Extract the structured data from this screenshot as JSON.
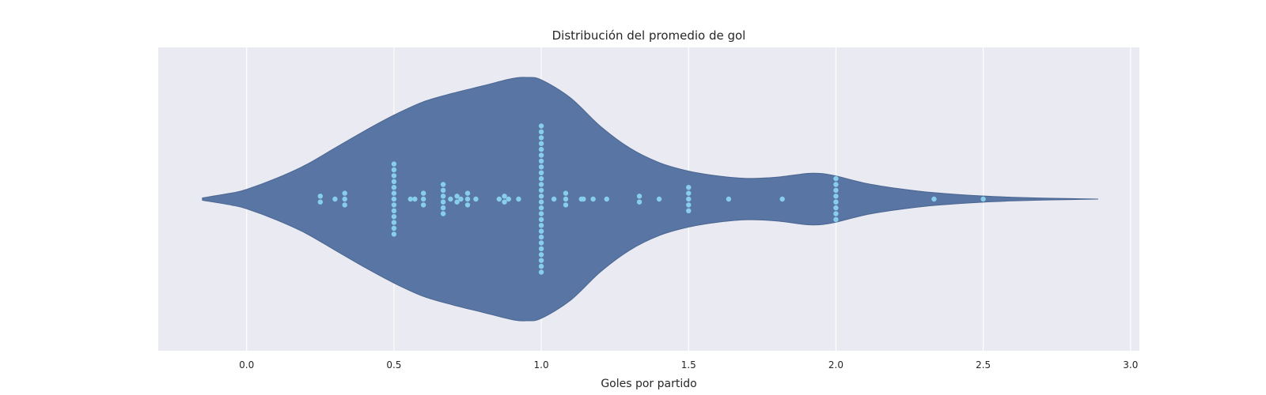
{
  "chart_data": {
    "type": "violin",
    "title": "Distribución del promedio de gol",
    "xlabel": "Goles por partido",
    "ylabel": "",
    "xlim": [
      -0.3,
      3.03
    ],
    "x_ticks": [
      "0.0",
      "0.5",
      "1.0",
      "1.5",
      "2.0",
      "2.5",
      "3.0"
    ],
    "grid": true,
    "colors": {
      "background": "#eaeaf2",
      "grid": "#ffffff",
      "violin": "#5975a4",
      "points": "#87ceeb"
    },
    "violin_profile": {
      "x": [
        -0.15,
        -0.05,
        0.0,
        0.1,
        0.2,
        0.3,
        0.4,
        0.5,
        0.6,
        0.7,
        0.8,
        0.9,
        0.95,
        1.0,
        1.1,
        1.2,
        1.3,
        1.4,
        1.5,
        1.6,
        1.7,
        1.8,
        1.9,
        1.95,
        2.0,
        2.1,
        2.2,
        2.3,
        2.4,
        2.5,
        2.6,
        2.7,
        2.8,
        2.89
      ],
      "density": [
        0.01,
        0.05,
        0.08,
        0.17,
        0.28,
        0.42,
        0.56,
        0.69,
        0.8,
        0.87,
        0.93,
        0.99,
        1.0,
        0.98,
        0.83,
        0.6,
        0.42,
        0.3,
        0.23,
        0.19,
        0.17,
        0.18,
        0.21,
        0.21,
        0.19,
        0.13,
        0.09,
        0.06,
        0.04,
        0.025,
        0.015,
        0.008,
        0.004,
        0.0
      ]
    },
    "points": [
      {
        "value": 0.25,
        "count": 2
      },
      {
        "value": 0.3,
        "count": 1
      },
      {
        "value": 0.333,
        "count": 3
      },
      {
        "value": 0.5,
        "count": 13
      },
      {
        "value": 0.556,
        "count": 1
      },
      {
        "value": 0.571,
        "count": 1
      },
      {
        "value": 0.6,
        "count": 3
      },
      {
        "value": 0.667,
        "count": 6
      },
      {
        "value": 0.692,
        "count": 1
      },
      {
        "value": 0.714,
        "count": 2
      },
      {
        "value": 0.727,
        "count": 1
      },
      {
        "value": 0.75,
        "count": 3
      },
      {
        "value": 0.778,
        "count": 1
      },
      {
        "value": 0.857,
        "count": 1
      },
      {
        "value": 0.875,
        "count": 2
      },
      {
        "value": 0.889,
        "count": 1
      },
      {
        "value": 0.923,
        "count": 1
      },
      {
        "value": 1.0,
        "count": 26
      },
      {
        "value": 1.043,
        "count": 1
      },
      {
        "value": 1.083,
        "count": 3
      },
      {
        "value": 1.136,
        "count": 1
      },
      {
        "value": 1.143,
        "count": 1
      },
      {
        "value": 1.176,
        "count": 1
      },
      {
        "value": 1.222,
        "count": 1
      },
      {
        "value": 1.333,
        "count": 2
      },
      {
        "value": 1.4,
        "count": 1
      },
      {
        "value": 1.5,
        "count": 5
      },
      {
        "value": 1.636,
        "count": 1
      },
      {
        "value": 1.818,
        "count": 1
      },
      {
        "value": 2.0,
        "count": 8
      },
      {
        "value": 2.333,
        "count": 1
      },
      {
        "value": 2.5,
        "count": 1
      }
    ]
  }
}
